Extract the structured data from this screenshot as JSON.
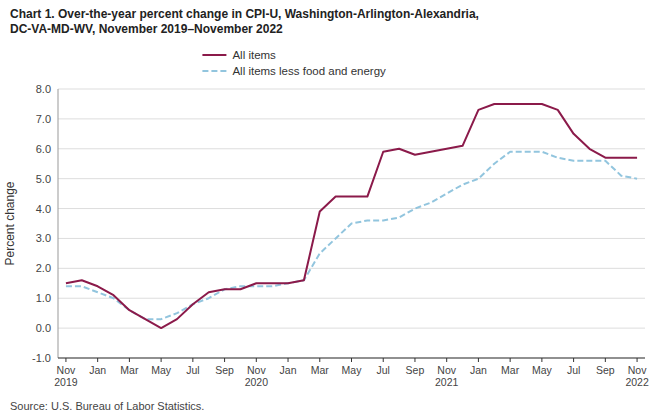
{
  "chart_data": {
    "type": "line",
    "title": "Chart 1. Over-the-year percent change in CPI-U, Washington-Arlington-Alexandria,\nDC-VA-MD-WV, November 2019–November 2022",
    "ylabel": "Percent change",
    "annotations": [
      "Source: U.S. Bureau of Labor Statistics."
    ],
    "categories": [
      "Nov\n2019",
      null,
      "Jan",
      null,
      "Mar",
      null,
      "May",
      null,
      "Jul",
      null,
      "Sep",
      null,
      "Nov\n2020",
      null,
      "Jan",
      null,
      "Mar",
      null,
      "May",
      null,
      "Jul",
      null,
      "Sep",
      null,
      "Nov\n2021",
      null,
      "Jan",
      null,
      "Mar",
      null,
      "May",
      null,
      "Jul",
      null,
      "Sep",
      null,
      "Nov\n2022"
    ],
    "series": [
      {
        "name": "All items",
        "color": "#8B1A4A",
        "line_style": "solid",
        "values": [
          1.5,
          1.6,
          1.4,
          1.1,
          0.6,
          0.3,
          0.0,
          0.3,
          0.8,
          1.2,
          1.3,
          1.3,
          1.5,
          1.5,
          1.5,
          1.6,
          3.9,
          4.4,
          4.4,
          4.4,
          5.9,
          6.0,
          5.8,
          5.9,
          6.0,
          6.1,
          7.3,
          7.5,
          7.5,
          7.5,
          7.5,
          7.3,
          6.5,
          6.0,
          5.7,
          5.7,
          5.7
        ]
      },
      {
        "name": "All items less food and energy",
        "color": "#92C5DE",
        "line_style": "dashed",
        "values": [
          1.4,
          1.4,
          1.2,
          1.0,
          0.6,
          0.3,
          0.3,
          0.5,
          0.8,
          1.0,
          1.3,
          1.4,
          1.4,
          1.4,
          1.5,
          1.6,
          2.5,
          3.0,
          3.5,
          3.6,
          3.6,
          3.7,
          4.0,
          4.2,
          4.5,
          4.8,
          5.0,
          5.5,
          5.9,
          5.9,
          5.9,
          5.7,
          5.6,
          5.6,
          5.6,
          5.1,
          5.0
        ]
      }
    ],
    "ylim": [
      -1.0,
      8.0
    ],
    "yticks": [
      {
        "value": -1.0,
        "label": "-1.0"
      },
      {
        "value": 0.0,
        "label": "0.0"
      },
      {
        "value": 1.0,
        "label": "1.0"
      },
      {
        "value": 2.0,
        "label": "2.0"
      },
      {
        "value": 3.0,
        "label": "3.0"
      },
      {
        "value": 4.0,
        "label": "4.0"
      },
      {
        "value": 5.0,
        "label": "5.0"
      },
      {
        "value": 6.0,
        "label": "6.0"
      },
      {
        "value": 7.0,
        "label": "7.0"
      },
      {
        "value": 8.0,
        "label": "8.0"
      }
    ],
    "grid": true,
    "legend": "top"
  }
}
